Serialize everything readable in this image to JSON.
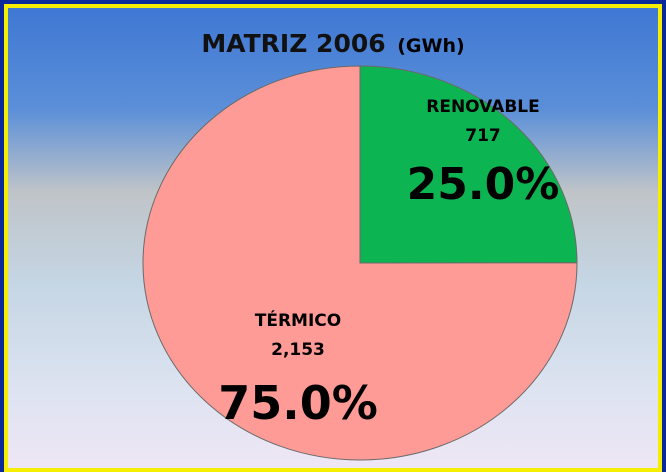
{
  "chart_data": {
    "type": "pie",
    "title": "MATRIZ 2006",
    "unit": "(GWh)",
    "categories": [
      "RENOVABLE",
      "TÉRMICO"
    ],
    "values": [
      717,
      2153
    ],
    "value_labels": [
      "717",
      "2,153"
    ],
    "percents": [
      25.0,
      75.0
    ],
    "percent_labels": [
      "25.0%",
      "75.0%"
    ],
    "colors": [
      "#0db552",
      "#ff9b96"
    ]
  }
}
